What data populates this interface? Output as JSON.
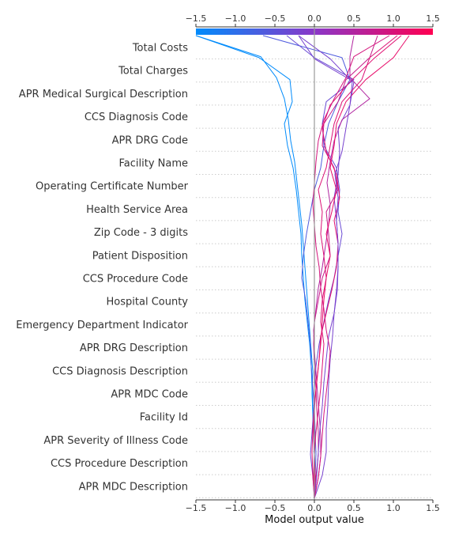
{
  "chart_data": {
    "type": "line",
    "xlabel": "Model output value",
    "xlim": [
      -1.5,
      1.5
    ],
    "xticks": [
      "−1.5",
      "−1.0",
      "−0.5",
      "0.0",
      "0.5",
      "1.0",
      "1.5"
    ],
    "xtick_values": [
      -1.5,
      -1.0,
      -0.5,
      0.0,
      0.5,
      1.0,
      1.5
    ],
    "base_value": 0.0,
    "colorbar": {
      "low_color": "#008bfb",
      "mid_color": "#8a37c8",
      "high_color": "#ff0051"
    },
    "features": [
      "Total Costs",
      "Total Charges",
      "APR Medical Surgical Description",
      "CCS Diagnosis Code",
      "APR DRG Code",
      "Facility Name",
      "Operating Certificate Number",
      "Health Service Area",
      "Zip Code - 3 digits",
      "Patient Disposition",
      "CCS Procedure Code",
      "Hospital County",
      "Emergency Department Indicator",
      "APR DRG Description",
      "CCS Diagnosis Description",
      "APR MDC Code",
      "Facility Id",
      "APR Severity of Illness Code",
      "CCS Procedure Description",
      "APR MDC Description"
    ],
    "series": [
      {
        "values": [
          0.0,
          -0.01,
          0.0,
          -0.01,
          -0.02,
          -0.03,
          -0.02,
          -0.04,
          -0.06,
          -0.08,
          -0.1,
          -0.12,
          -0.14,
          -0.16,
          -0.19,
          -0.22,
          -0.25,
          -0.3,
          -0.33,
          -0.38,
          -0.48,
          -0.68,
          -1.5
        ]
      },
      {
        "values": [
          0.0,
          0.01,
          0.0,
          -0.01,
          -0.02,
          -0.03,
          -0.04,
          -0.06,
          -0.09,
          -0.12,
          -0.14,
          -0.16,
          -0.17,
          -0.2,
          -0.23,
          -0.27,
          -0.34,
          -0.38,
          -0.28,
          -0.31,
          -0.7,
          -1.5
        ]
      },
      {
        "values": [
          0.0,
          0.01,
          0.02,
          0.01,
          0.0,
          -0.02,
          -0.04,
          -0.05,
          -0.08,
          -0.11,
          -0.16,
          -0.14,
          -0.1,
          -0.05,
          0.0,
          0.08,
          0.12,
          0.18,
          0.3,
          0.45,
          0.35,
          -0.65
        ]
      },
      {
        "values": [
          0.0,
          0.1,
          0.15,
          0.15,
          0.17,
          0.18,
          0.2,
          0.23,
          0.25,
          0.29,
          0.3,
          0.3,
          0.28,
          0.25,
          0.3,
          0.32,
          0.3,
          0.45,
          0.5,
          0.0,
          -0.2
        ]
      },
      {
        "values": [
          0.0,
          -0.02,
          -0.05,
          -0.03,
          -0.01,
          0.0,
          0.02,
          0.06,
          0.12,
          0.18,
          0.25,
          0.3,
          0.35,
          0.3,
          0.32,
          0.28,
          0.12,
          0.1,
          0.15,
          0.5,
          0.0,
          -0.35
        ]
      },
      {
        "values": [
          0.0,
          0.05,
          0.08,
          0.08,
          0.06,
          0.04,
          0.02,
          0.0,
          -0.01,
          0.02,
          0.05,
          0.1,
          0.14,
          0.18,
          0.2,
          0.16,
          0.2,
          0.25,
          0.35,
          0.7,
          0.45,
          0.45,
          0.5
        ]
      },
      {
        "values": [
          0.0,
          0.02,
          0.05,
          0.05,
          0.03,
          0.02,
          0.0,
          -0.01,
          0.0,
          0.05,
          0.1,
          0.2,
          0.18,
          0.15,
          0.3,
          0.25,
          0.1,
          0.12,
          0.3,
          0.4,
          0.7,
          0.8
        ]
      },
      {
        "values": [
          0.0,
          -0.02,
          -0.03,
          -0.02,
          0.0,
          0.03,
          0.06,
          0.08,
          0.15,
          0.22,
          0.28,
          0.3,
          0.25,
          0.32,
          0.28,
          0.15,
          0.1,
          0.2,
          0.45,
          0.75,
          1.1
        ]
      },
      {
        "values": [
          0.0,
          0.01,
          0.0,
          -0.01,
          0.0,
          0.02,
          0.05,
          0.08,
          0.1,
          0.12,
          0.15,
          0.2,
          0.15,
          0.22,
          0.28,
          0.2,
          0.25,
          0.28,
          0.4,
          0.65,
          1.0,
          1.2
        ]
      },
      {
        "values": [
          0.0,
          0.03,
          0.05,
          0.07,
          0.1,
          0.12,
          0.15,
          0.18,
          0.25,
          0.28,
          0.3,
          0.3,
          0.28,
          0.3,
          0.26,
          0.35,
          0.4,
          0.45,
          0.48,
          0.2,
          -0.2
        ]
      },
      {
        "values": [
          0.0,
          0.05,
          0.08,
          0.1,
          0.12,
          0.15,
          0.18,
          0.2,
          0.15,
          0.12,
          0.08,
          0.06,
          0.02,
          0.0,
          -0.02,
          0.0,
          0.02,
          0.05,
          0.12,
          0.25,
          0.4,
          0.5,
          0.95
        ]
      },
      {
        "values": [
          0.0,
          -0.01,
          0.0,
          0.02,
          0.05,
          0.08,
          0.1,
          0.12,
          0.08,
          0.1,
          0.15,
          0.12,
          0.08,
          0.1,
          0.05,
          0.15,
          0.2,
          0.25,
          0.35,
          0.6,
          0.7,
          1.05
        ]
      }
    ]
  }
}
